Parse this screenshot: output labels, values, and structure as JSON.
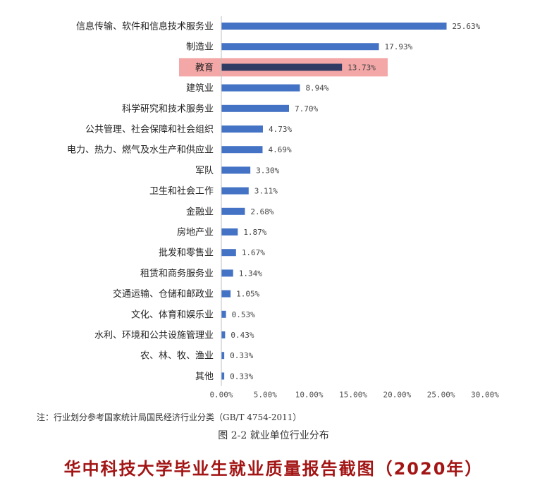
{
  "chart_data": {
    "type": "bar",
    "orientation": "horizontal",
    "categories": [
      "信息传输、软件和信息技术服务业",
      "制造业",
      "教育",
      "建筑业",
      "科学研究和技术服务业",
      "公共管理、社会保障和社会组织",
      "电力、热力、燃气及水生产和供应业",
      "军队",
      "卫生和社会工作",
      "金融业",
      "房地产业",
      "批发和零售业",
      "租赁和商务服务业",
      "交通运输、仓储和邮政业",
      "文化、体育和娱乐业",
      "水利、环境和公共设施管理业",
      "农、林、牧、渔业",
      "其他"
    ],
    "values": [
      25.63,
      17.93,
      13.73,
      8.94,
      7.7,
      4.73,
      4.69,
      3.3,
      3.11,
      2.68,
      1.87,
      1.67,
      1.34,
      1.05,
      0.53,
      0.43,
      0.33,
      0.33
    ],
    "value_labels": [
      "25.63%",
      "17.93%",
      "13.73%",
      "8.94%",
      "7.70%",
      "4.73%",
      "4.69%",
      "3.30%",
      "3.11%",
      "2.68%",
      "1.87%",
      "1.67%",
      "1.34%",
      "1.05%",
      "0.53%",
      "0.43%",
      "0.33%",
      "0.33%"
    ],
    "xlim": [
      0,
      30
    ],
    "xticks": [
      0,
      5,
      10,
      15,
      20,
      25,
      30
    ],
    "xtick_labels": [
      "0.00%",
      "5.00%",
      "10.00%",
      "15.00%",
      "20.00%",
      "25.00%",
      "30.00%"
    ],
    "highlight_category": "教育",
    "grid": false,
    "colors": {
      "bar": "#4472c4",
      "highlight_bar": "#2f3b63",
      "highlight_band": "#f4a7a7"
    }
  },
  "note": "注：行业划分参考国家统计局国民经济行业分类（GB/T 4754-2011）",
  "caption": "图 2-2   就业单位行业分布",
  "banner": "华中科技大学毕业生就业质量报告截图（2020年）"
}
